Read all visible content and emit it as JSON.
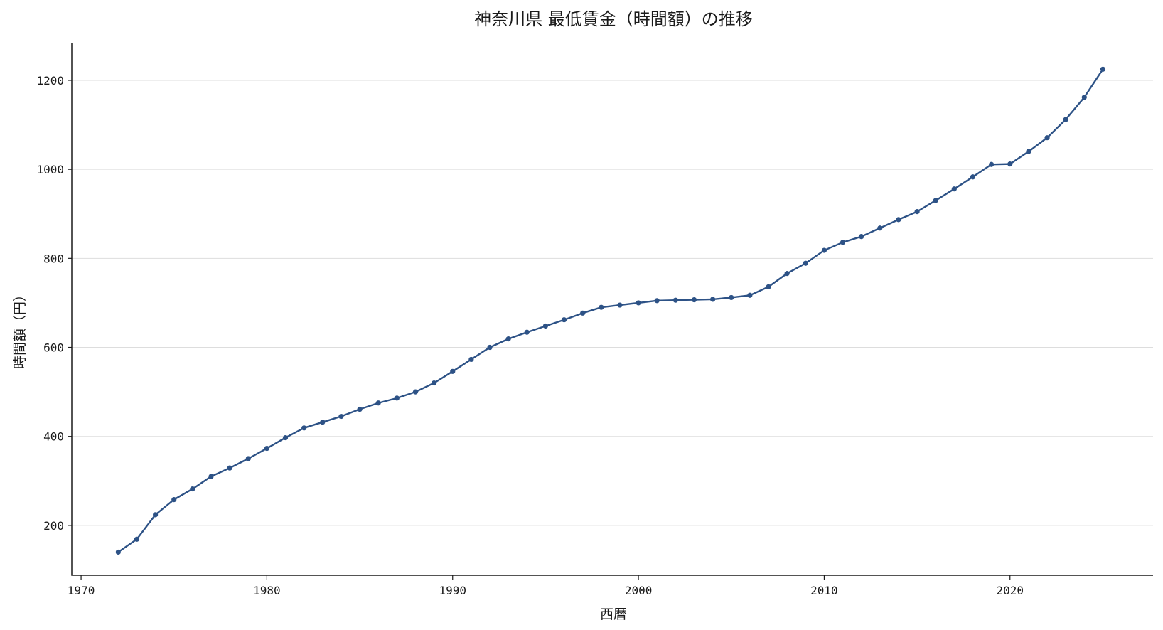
{
  "chart_data": {
    "type": "line",
    "title": "神奈川県 最低賃金（時間額）の推移",
    "xlabel": "西暦",
    "ylabel": "時間額（円）",
    "xlim": [
      1969.5,
      2027.7
    ],
    "ylim": [
      88,
      1283
    ],
    "xticks": [
      1970,
      1980,
      1990,
      2000,
      2010,
      2020
    ],
    "yticks": [
      200,
      400,
      600,
      800,
      1000,
      1200
    ],
    "grid": "y",
    "legend": "none",
    "colors": {
      "line": "#2d5286",
      "marker": "#2d5286"
    },
    "series": [
      {
        "x": [
          1972,
          1973,
          1974,
          1975,
          1976,
          1977,
          1978,
          1979,
          1980,
          1981,
          1982,
          1983,
          1984,
          1985,
          1986,
          1987,
          1988,
          1989,
          1990,
          1991,
          1992,
          1993,
          1994,
          1995,
          1996,
          1997,
          1998,
          1999,
          2000,
          2001,
          2002,
          2003,
          2004,
          2005,
          2006,
          2007,
          2008,
          2009,
          2010,
          2011,
          2012,
          2013,
          2014,
          2015,
          2016,
          2017,
          2018,
          2019,
          2020,
          2021,
          2022,
          2023,
          2024,
          2025
        ],
        "values": [
          140,
          169,
          224,
          258,
          282,
          310,
          329,
          350,
          373,
          397,
          419,
          432,
          445,
          461,
          475,
          486,
          500,
          520,
          546,
          573,
          600,
          619,
          634,
          648,
          662,
          677,
          690,
          695,
          700,
          705,
          706,
          707,
          708,
          712,
          717,
          736,
          766,
          789,
          818,
          836,
          849,
          868,
          887,
          905,
          930,
          956,
          983,
          1011,
          1012,
          1040,
          1071,
          1112,
          1162,
          1225
        ]
      }
    ]
  }
}
